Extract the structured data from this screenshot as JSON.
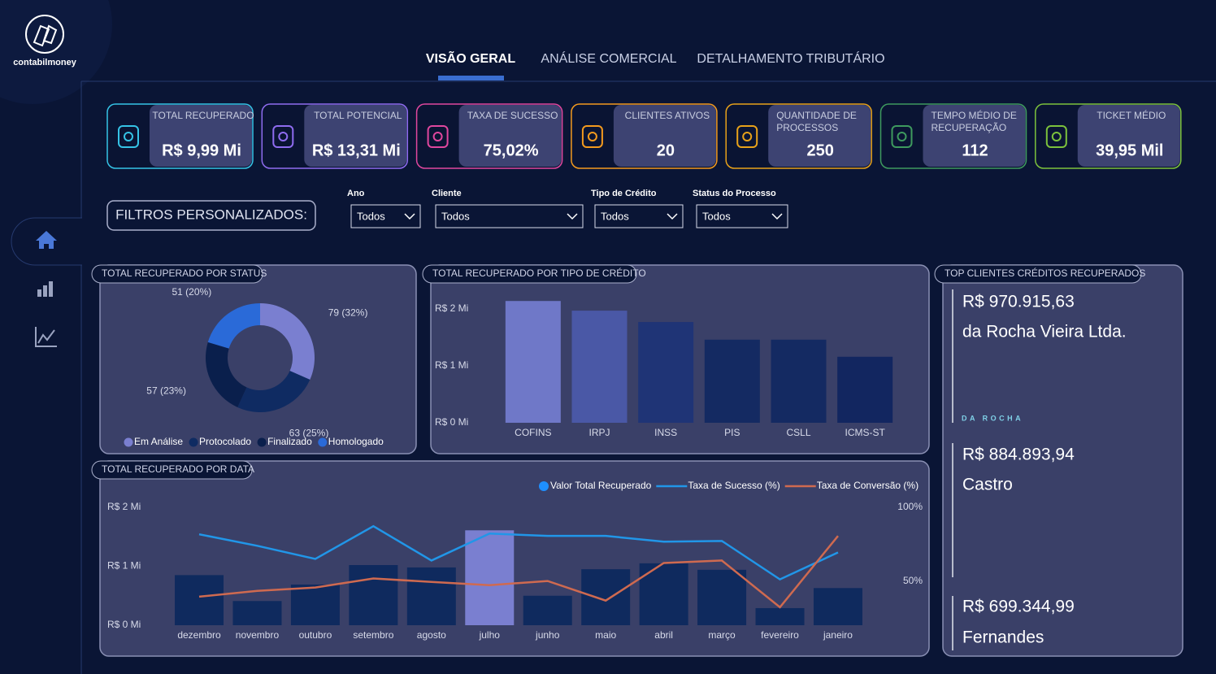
{
  "brand": "contabilmoney",
  "tabs": [
    "VISÃO GERAL",
    "ANÁLISE COMERCIAL",
    "DETALHAMENTO TRIBUTÁRIO"
  ],
  "kpis": [
    {
      "label": [
        "TOTAL RECUPERADO"
      ],
      "value": "R$ 9,99 Mi",
      "color": "#35c3e6"
    },
    {
      "label": [
        "TOTAL POTENCIAL"
      ],
      "value": "R$ 13,31 Mi",
      "color": "#8f6cf0"
    },
    {
      "label": [
        "TAXA DE SUCESSO"
      ],
      "value": "75,02%",
      "color": "#e0479e"
    },
    {
      "label": [
        "CLIENTES ATIVOS"
      ],
      "value": "20",
      "color": "#f39a1e"
    },
    {
      "label": [
        "QUANTIDADE DE",
        "PROCESSOS"
      ],
      "value": "250",
      "color": "#e8a21a"
    },
    {
      "label": [
        "TEMPO MÉDIO DE",
        "RECUPERAÇÃO"
      ],
      "value": "112",
      "color": "#3e9a5e"
    },
    {
      "label": [
        "TICKET MÉDIO"
      ],
      "value": "39,95 Mil",
      "color": "#7cc23c"
    }
  ],
  "filters_title": "FILTROS PERSONALIZADOS:",
  "filters": [
    {
      "label": "Ano",
      "value": "Todos"
    },
    {
      "label": "Cliente",
      "value": "Todos"
    },
    {
      "label": "Tipo de Crédito",
      "value": "Todos"
    },
    {
      "label": "Status do Processo",
      "value": "Todos"
    }
  ],
  "chart_data": [
    {
      "type": "pie",
      "title": "TOTAL RECUPERADO POR STATUS",
      "categories": [
        "Em Análise",
        "Protocolado",
        "Finalizado",
        "Homologado"
      ],
      "values": [
        79,
        63,
        57,
        51
      ],
      "value_labels": [
        "79 (32%)",
        "63 (25%)",
        "57 (23%)",
        "51 (20%)"
      ],
      "colors": [
        "#7a7fd0",
        "#0f2b62",
        "#0a1f4c",
        "#2a6ad8"
      ],
      "donut": true
    },
    {
      "type": "bar",
      "title": "TOTAL RECUPERADO POR TIPO DE CRÉDITO",
      "categories": [
        "COFINS",
        "IRPJ",
        "INSS",
        "PIS",
        "CSLL",
        "ICMS-ST"
      ],
      "values": [
        2140000,
        1970000,
        1770000,
        1460000,
        1460000,
        1160000
      ],
      "colors": [
        "#6f78c8",
        "#4a58a6",
        "#1f3476",
        "#142a62",
        "#142a62",
        "#122660"
      ],
      "ylim": [
        0,
        2200000
      ],
      "yticks": [
        {
          "value": 0,
          "label": "R$ 0 Mi"
        },
        {
          "value": 1000000,
          "label": "R$ 1 Mi"
        },
        {
          "value": 2000000,
          "label": "R$ 2 Mi"
        }
      ]
    },
    {
      "type": "combo",
      "title": "TOTAL RECUPERADO POR DATA",
      "categories": [
        "dezembro",
        "novembro",
        "outubro",
        "setembro",
        "agosto",
        "julho",
        "junho",
        "maio",
        "abril",
        "março",
        "fevereiro",
        "janeiro"
      ],
      "series": [
        {
          "name": "Valor Total Recuperado",
          "kind": "bar",
          "color": "#1e8fff",
          "colors": [
            "#0f2a5e",
            "#0f2a5e",
            "#0f2a5e",
            "#0f2a5e",
            "#0f2a5e",
            "#7a7fd0",
            "#0f2a5e",
            "#0f2a5e",
            "#0f2a5e",
            "#0f2a5e",
            "#0f2a5e",
            "#0f2a5e"
          ],
          "values": [
            850000,
            410000,
            690000,
            1020000,
            980000,
            1610000,
            500000,
            950000,
            1050000,
            940000,
            290000,
            630000
          ]
        },
        {
          "name": "Taxa de Sucesso (%)",
          "kind": "line",
          "axis": "y2",
          "color": "#2196e8",
          "values": [
            81.7,
            73.9,
            65,
            87.2,
            63.9,
            82.2,
            80.6,
            80.6,
            76.7,
            77.2,
            51.1,
            69.4
          ]
        },
        {
          "name": "Taxa de Conversão (%)",
          "kind": "line",
          "axis": "y2",
          "color": "#cf6a50",
          "values": [
            39.4,
            43.3,
            45.6,
            51.7,
            49.4,
            47.2,
            50,
            36.7,
            62.2,
            63.9,
            32.2,
            80.6
          ]
        }
      ],
      "ylim": [
        0,
        2000000
      ],
      "yticks": [
        {
          "value": 0,
          "label": "R$ 0 Mi"
        },
        {
          "value": 1000000,
          "label": "R$ 1 Mi"
        },
        {
          "value": 2000000,
          "label": "R$ 2 Mi"
        }
      ],
      "y2lim": [
        20,
        100
      ],
      "y2ticks": [
        {
          "value": 50,
          "label": "50%"
        },
        {
          "value": 100,
          "label": "100%"
        }
      ]
    }
  ],
  "top_clients": {
    "title": "TOP CLIENTES CRÉDITOS RECUPERADOS",
    "items": [
      {
        "amount": "R$ 970.915,63",
        "name": "da Rocha Vieira Ltda.",
        "logo_text": "DA ROCHA"
      },
      {
        "amount": "R$ 884.893,94",
        "name": "Castro"
      },
      {
        "amount": "R$ 699.344,99",
        "name": "Fernandes"
      }
    ]
  }
}
